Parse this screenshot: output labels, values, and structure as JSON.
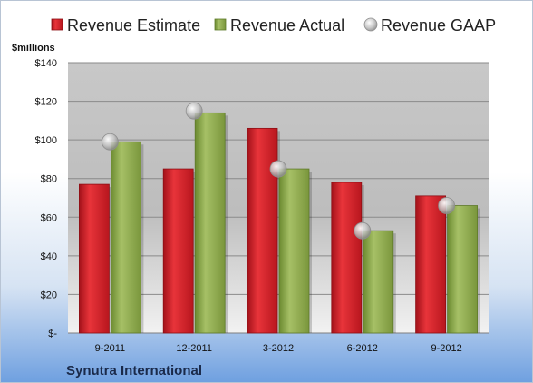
{
  "chart_data": {
    "type": "bar",
    "ylabel": "$millions",
    "caption": "Synutra International",
    "categories": [
      "9-2011",
      "12-2011",
      "3-2012",
      "6-2012",
      "9-2012"
    ],
    "series": [
      {
        "name": "Revenue Estimate",
        "kind": "bar",
        "color": "#d42027",
        "values": [
          77,
          85,
          106,
          78,
          71
        ]
      },
      {
        "name": "Revenue Actual",
        "kind": "bar",
        "color": "#8aa54a",
        "values": [
          99,
          114,
          85,
          53,
          66
        ]
      },
      {
        "name": "Revenue GAAP",
        "kind": "marker",
        "color": "#b9b9b9",
        "values": [
          99,
          115,
          85,
          53,
          66
        ]
      }
    ],
    "ylim": [
      0,
      140
    ],
    "yticks": [
      {
        "value": 0,
        "label": "$-"
      },
      {
        "value": 20,
        "label": "$20"
      },
      {
        "value": 40,
        "label": "$40"
      },
      {
        "value": 60,
        "label": "$60"
      },
      {
        "value": 80,
        "label": "$80"
      },
      {
        "value": 100,
        "label": "$100"
      },
      {
        "value": 120,
        "label": "$120"
      },
      {
        "value": 140,
        "label": "$140"
      }
    ],
    "grid": true,
    "legend": "top"
  }
}
